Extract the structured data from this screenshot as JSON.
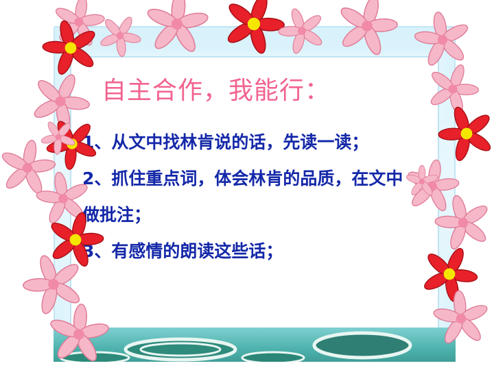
{
  "slide": {
    "title": "自主合作，我能行：",
    "items": [
      "1、从文中找林肯说的话，先读一读；",
      "2、抓住重点词，体会林肯的品质，在文中做批注；",
      "3、有感情的朗读这些话；"
    ]
  },
  "colors": {
    "title": "#f2638f",
    "body_text": "#1428a8",
    "frame": "#d7f1fb",
    "pink_petal": "#f6b8c8",
    "red_petal": "#e8202a",
    "flower_center": "#f5e600",
    "water": "#4fb3ae"
  },
  "decoration": {
    "border_icon": "flower-icon",
    "bottom_icon": "lily-pad-icon"
  }
}
